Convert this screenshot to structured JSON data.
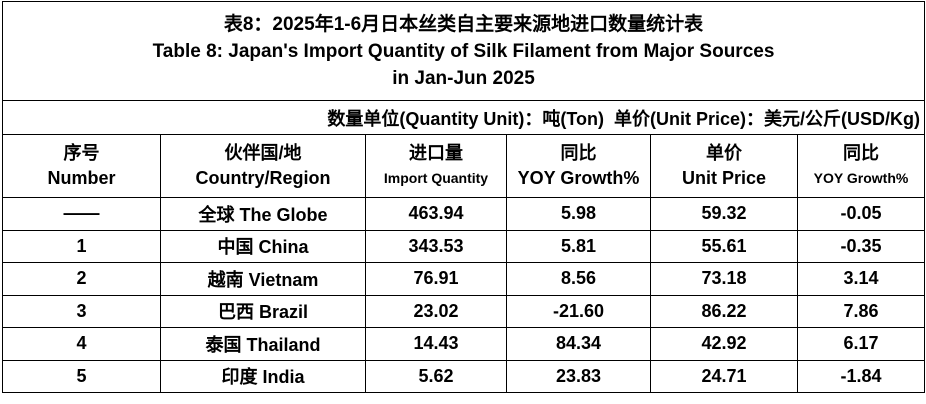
{
  "table": {
    "title": [
      "表8：2025年1-6月日本丝类自主要来源地进口数量统计表",
      "Table 8: Japan's Import Quantity of Silk Filament from Major Sources",
      "in Jan-Jun 2025"
    ],
    "unit": "数量单位(Quantity Unit)：吨(Ton)  单价(Unit Price)：美元/公斤(USD/Kg)",
    "headers": [
      [
        "序号",
        "Number"
      ],
      [
        "伙伴国/地",
        "Country/Region"
      ],
      [
        "进口量",
        "Import Quantity"
      ],
      [
        "同比",
        "YOY Growth%"
      ],
      [
        "单价",
        "Unit Price"
      ],
      [
        "同比",
        "YOY Growth%"
      ]
    ],
    "rows": [
      [
        "——",
        "全球 The Globe",
        "463.94",
        "5.98",
        "59.32",
        "-0.05"
      ],
      [
        "1",
        "中国 China",
        "343.53",
        "5.81",
        "55.61",
        "-0.35"
      ],
      [
        "2",
        "越南 Vietnam",
        "76.91",
        "8.56",
        "73.18",
        "3.14"
      ],
      [
        "3",
        "巴西 Brazil",
        "23.02",
        "-21.60",
        "86.22",
        "7.86"
      ],
      [
        "4",
        "泰国 Thailand",
        "14.43",
        "84.34",
        "42.92",
        "6.17"
      ],
      [
        "5",
        "印度 India",
        "5.62",
        "23.83",
        "24.71",
        "-1.84"
      ]
    ]
  }
}
